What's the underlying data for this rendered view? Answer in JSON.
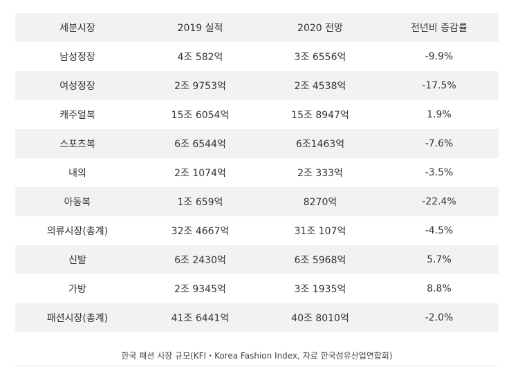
{
  "table": {
    "headers": [
      "세분시장",
      "2019 실적",
      "2020 전망",
      "전년비 증감률"
    ],
    "rows": [
      [
        "남성정장",
        "4조 582억",
        "3조 6556억",
        "-9.9%"
      ],
      [
        "여성정장",
        "2조 9753억",
        "2조 4538억",
        "-17.5%"
      ],
      [
        "캐주얼복",
        "15조 6054억",
        "15조 8947억",
        "1.9%"
      ],
      [
        "스포츠복",
        "6조 6544억",
        "6조1463억",
        "-7.6%"
      ],
      [
        "내의",
        "2조 1074억",
        "2조 333억",
        "-3.5%"
      ],
      [
        "아동복",
        "1조 659억",
        "8270억",
        "-22.4%"
      ],
      [
        "의류시장(총계)",
        "32조 4667억",
        "31조 107억",
        "-4.5%"
      ],
      [
        "신발",
        "6조 2430억",
        "6조 5968억",
        "5.7%"
      ],
      [
        "가방",
        "2조 9345억",
        "3조 1935억",
        "8.8%"
      ],
      [
        "패션시장(총계)",
        "41조 6441억",
        "40조 8010억",
        "-2.0%"
      ]
    ]
  },
  "caption": "한국 패션 시장 규모(KFI・Korea Fashion Index, 자료 한국섬유산업연합회)"
}
